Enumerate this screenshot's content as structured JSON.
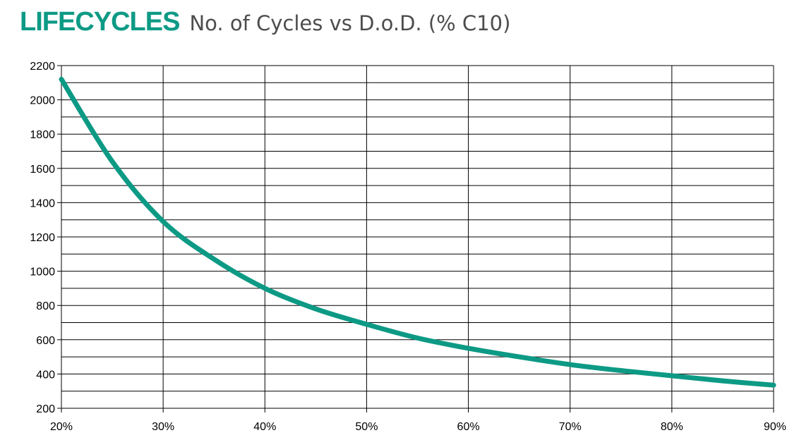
{
  "header": {
    "brand": "LIFECYCLES",
    "subtitle": "No. of Cycles vs D.o.D. (% C10)"
  },
  "colors": {
    "brand": "#0d9a85",
    "series": "#0d9a85",
    "grid": "#000000",
    "text": "#000000"
  },
  "chart_data": {
    "type": "line",
    "title": "LIFECYCLES No. of Cycles vs D.o.D. (% C10)",
    "xlabel": "",
    "ylabel": "",
    "xlim": [
      20,
      90
    ],
    "ylim": [
      200,
      2200
    ],
    "grid": true,
    "x_ticks": [
      20,
      30,
      40,
      50,
      60,
      70,
      80,
      90
    ],
    "x_tick_labels": [
      "20%",
      "30%",
      "40%",
      "50%",
      "60%",
      "70%",
      "80%",
      "90%"
    ],
    "y_ticks": [
      200,
      400,
      600,
      800,
      1000,
      1200,
      1400,
      1600,
      1800,
      2000,
      2200
    ],
    "y_tick_labels": [
      "200",
      "400",
      "600",
      "800",
      "1000",
      "1200",
      "1400",
      "1600",
      "1800",
      "2000",
      "2200"
    ],
    "series": [
      {
        "name": "No. of Cycles",
        "x": [
          20,
          25,
          30,
          35,
          40,
          45,
          50,
          55,
          60,
          65,
          70,
          75,
          80,
          85,
          90
        ],
        "y": [
          2120,
          1640,
          1290,
          1070,
          900,
          780,
          690,
          610,
          550,
          500,
          455,
          420,
          390,
          360,
          335
        ]
      }
    ]
  }
}
